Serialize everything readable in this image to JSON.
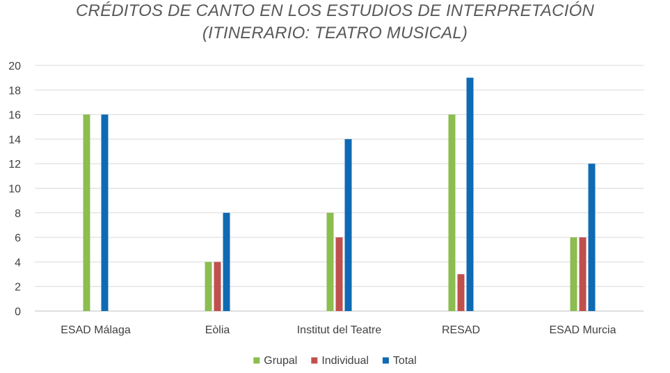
{
  "chart_data": {
    "type": "bar",
    "title_lines": [
      "CRÉDITOS DE CANTO EN LOS ESTUDIOS DE INTERPRETACIÓN",
      "(ITINERARIO: TEATRO MUSICAL)"
    ],
    "xlabel": "",
    "ylabel": "",
    "categories": [
      "ESAD Málaga",
      "Eòlia",
      "Institut del Teatre",
      "RESAD",
      "ESAD Murcia"
    ],
    "series": [
      {
        "name": "Grupal",
        "color": "#8cbd50",
        "values": [
          16,
          4,
          8,
          16,
          6
        ]
      },
      {
        "name": "Individual",
        "color": "#c0504d",
        "values": [
          null,
          4,
          6,
          3,
          6
        ]
      },
      {
        "name": "Total",
        "color": "#0f6ab4",
        "values": [
          16,
          8,
          14,
          19,
          12
        ]
      }
    ],
    "ylim": [
      0,
      20
    ],
    "yticks": [
      0,
      2,
      4,
      6,
      8,
      10,
      12,
      14,
      16,
      18,
      20
    ],
    "grid": true,
    "legend_position": "bottom"
  }
}
